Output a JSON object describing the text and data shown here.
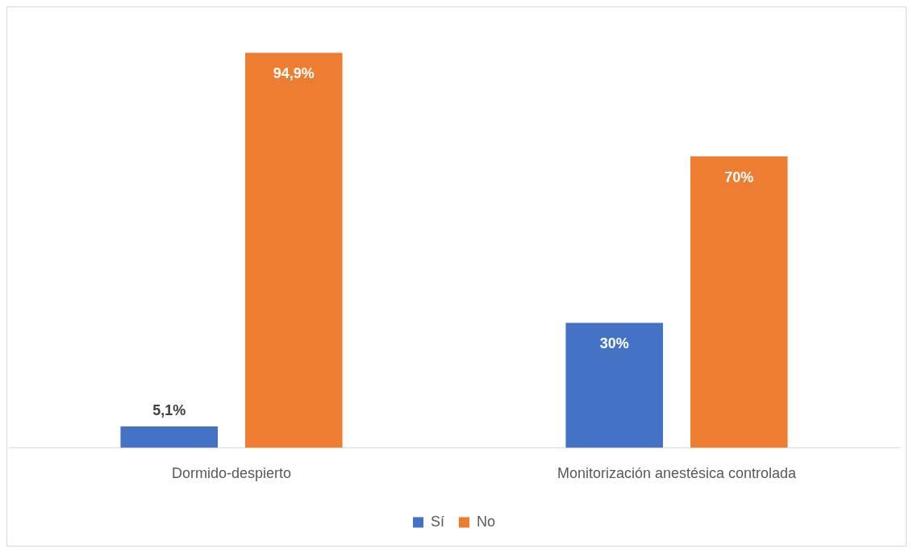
{
  "chart_data": {
    "type": "bar",
    "categories": [
      "Dormido-despierto",
      "Monitorización anestésica controlada"
    ],
    "series": [
      {
        "name": "Sí",
        "color": "#4472c4",
        "values": [
          5.1,
          30
        ],
        "value_labels": [
          "5,1%",
          "30%"
        ]
      },
      {
        "name": "No",
        "color": "#ed7d31",
        "values": [
          94.9,
          70
        ],
        "value_labels": [
          "94,9%",
          "70%"
        ]
      }
    ],
    "tick_labels": "x",
    "legend": "bottom",
    "grid": false
  }
}
